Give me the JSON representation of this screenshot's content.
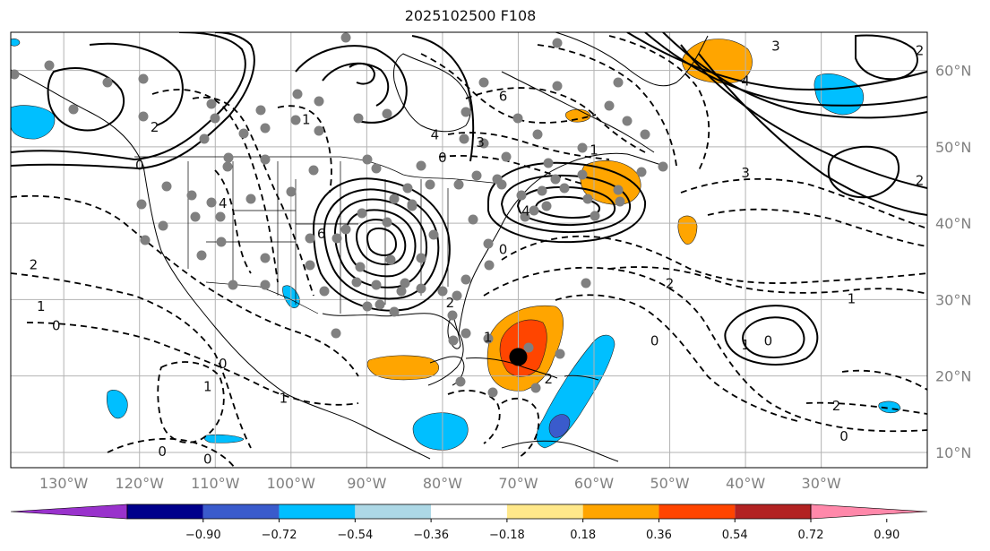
{
  "title": "2025102500 F108",
  "map": {
    "lon_range": [
      -137,
      -16
    ],
    "lat_range": [
      8,
      65
    ],
    "lon_ticks": [
      {
        "lon": -130,
        "label": "130°W"
      },
      {
        "lon": -120,
        "label": "120°W"
      },
      {
        "lon": -110,
        "label": "110°W"
      },
      {
        "lon": -100,
        "label": "100°W"
      },
      {
        "lon": -90,
        "label": "90°W"
      },
      {
        "lon": -80,
        "label": "80°W"
      },
      {
        "lon": -70,
        "label": "70°W"
      },
      {
        "lon": -60,
        "label": "60°W"
      },
      {
        "lon": -50,
        "label": "50°W"
      },
      {
        "lon": -40,
        "label": "40°W"
      },
      {
        "lon": -30,
        "label": "30°W"
      }
    ],
    "lat_ticks": [
      {
        "lat": 60,
        "label": "60°N"
      },
      {
        "lat": 50,
        "label": "50°N"
      },
      {
        "lat": 40,
        "label": "40°N"
      },
      {
        "lat": 30,
        "label": "30°N"
      },
      {
        "lat": 20,
        "label": "20°N"
      },
      {
        "lat": 10,
        "label": "10°N"
      }
    ],
    "contour_labels": [
      {
        "text": "2",
        "lon": -17,
        "lat": 62
      },
      {
        "text": "3",
        "lon": -36,
        "lat": 62.6
      },
      {
        "text": "4",
        "lon": -40,
        "lat": 58
      },
      {
        "text": "3",
        "lon": -40,
        "lat": 46
      },
      {
        "text": "2",
        "lon": -17,
        "lat": 45
      },
      {
        "text": "6",
        "lon": -72,
        "lat": 56
      },
      {
        "text": "4",
        "lon": -81,
        "lat": 51
      },
      {
        "text": "3",
        "lon": -75,
        "lat": 50
      },
      {
        "text": "1",
        "lon": -60,
        "lat": 49
      },
      {
        "text": "0",
        "lon": -80,
        "lat": 48
      },
      {
        "text": "4",
        "lon": -69,
        "lat": 41
      },
      {
        "text": "0",
        "lon": -72,
        "lat": 36
      },
      {
        "text": "6",
        "lon": -96,
        "lat": 38
      },
      {
        "text": "1",
        "lon": -98,
        "lat": 53
      },
      {
        "text": "2",
        "lon": -118,
        "lat": 52
      },
      {
        "text": "0",
        "lon": -120,
        "lat": 47
      },
      {
        "text": "4",
        "lon": -109,
        "lat": 42
      },
      {
        "text": "2",
        "lon": -134,
        "lat": 34
      },
      {
        "text": "1",
        "lon": -133,
        "lat": 28.5
      },
      {
        "text": "0",
        "lon": -131,
        "lat": 26
      },
      {
        "text": "2",
        "lon": -50,
        "lat": 31.5
      },
      {
        "text": "1",
        "lon": -26,
        "lat": 29.5
      },
      {
        "text": "0",
        "lon": -52,
        "lat": 24
      },
      {
        "text": "1",
        "lon": -40,
        "lat": 23.5
      },
      {
        "text": "0",
        "lon": -37,
        "lat": 24
      },
      {
        "text": "2",
        "lon": -28,
        "lat": 15.5
      },
      {
        "text": "0",
        "lon": -27,
        "lat": 11.5
      },
      {
        "text": "2",
        "lon": -79,
        "lat": 29
      },
      {
        "text": "1",
        "lon": -74,
        "lat": 24.5
      },
      {
        "text": "2",
        "lon": -66,
        "lat": 19
      },
      {
        "text": "1",
        "lon": -111,
        "lat": 18
      },
      {
        "text": "0",
        "lon": -109,
        "lat": 21
      },
      {
        "text": "0",
        "lon": -117,
        "lat": 9.5
      },
      {
        "text": "0",
        "lon": -111,
        "lat": 8.5
      },
      {
        "text": "1",
        "lon": -101,
        "lat": 16.5
      }
    ],
    "storm_center": {
      "lon": -70,
      "lat": 22.5
    }
  },
  "colorbar": {
    "colors": [
      "#9932CC",
      "#00008B",
      "#3A5BCC",
      "#00BFFF",
      "#ADD8E6",
      "#FFFFFF",
      "#FFE88A",
      "#FFA500",
      "#FF4500",
      "#B22222",
      "#FF88AA"
    ],
    "labels": [
      "−0.90",
      "−0.72",
      "−0.54",
      "−0.36",
      "−0.18",
      "0.18",
      "0.36",
      "0.54",
      "0.72",
      "0.90"
    ]
  }
}
